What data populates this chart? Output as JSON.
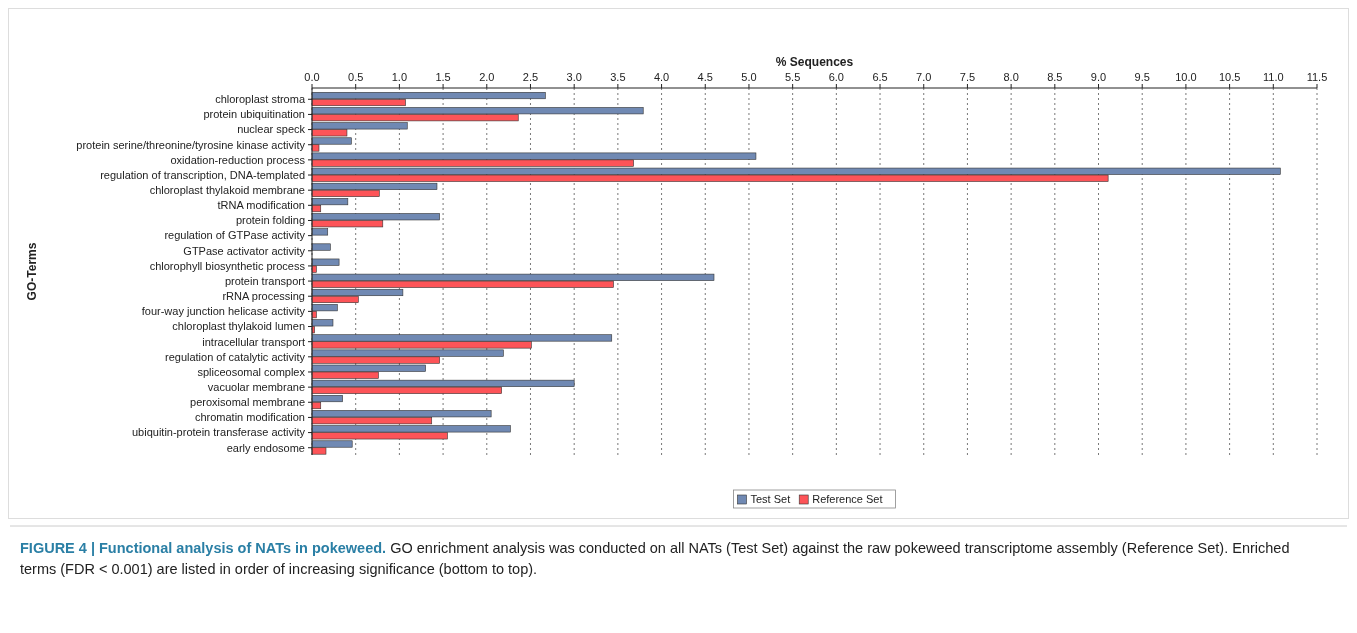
{
  "chart_data": {
    "type": "bar",
    "orientation": "horizontal",
    "xlabel": "% Sequences",
    "ylabel": "GO-Terms",
    "categories": [
      "chloroplast stroma",
      "protein ubiquitination",
      "nuclear speck",
      "protein serine/threonine/tyrosine kinase activity",
      "oxidation-reduction process",
      "regulation of transcription, DNA-templated",
      "chloroplast thylakoid membrane",
      "tRNA modification",
      "protein folding",
      "regulation of GTPase activity",
      "GTPase activator activity",
      "chlorophyll biosynthetic process",
      "protein transport",
      "rRNA processing",
      "four-way junction helicase activity",
      "chloroplast thylakoid lumen",
      "intracellular transport",
      "regulation of catalytic activity",
      "spliceosomal complex",
      "vacuolar membrane",
      "peroxisomal membrane",
      "chromatin modification",
      "ubiquitin-protein transferase activity",
      "early endosome"
    ],
    "series": [
      {
        "name": "Test Set",
        "color": "#7089b3",
        "values": [
          2.67,
          3.79,
          1.09,
          0.45,
          5.08,
          11.08,
          1.43,
          0.41,
          1.46,
          0.18,
          0.21,
          0.31,
          4.6,
          1.04,
          0.29,
          0.24,
          3.43,
          2.19,
          1.3,
          3.0,
          0.35,
          2.05,
          2.27,
          0.46
        ]
      },
      {
        "name": "Reference Set",
        "color": "#fd5458",
        "values": [
          1.07,
          2.36,
          0.4,
          0.08,
          3.68,
          9.11,
          0.77,
          0.1,
          0.81,
          null,
          null,
          0.05,
          3.45,
          0.53,
          0.05,
          0.03,
          2.51,
          1.46,
          0.76,
          2.17,
          0.1,
          1.37,
          1.55,
          0.16
        ]
      }
    ],
    "xlim": [
      0,
      11.5
    ],
    "xticks": [
      {
        "value": 0,
        "label": "0.0"
      },
      {
        "value": 0.5,
        "label": "0.5"
      },
      {
        "value": 1,
        "label": "1.0"
      },
      {
        "value": 1.5,
        "label": "1.5"
      },
      {
        "value": 2,
        "label": "2.0"
      },
      {
        "value": 2.5,
        "label": "2.5"
      },
      {
        "value": 3,
        "label": "3.0"
      },
      {
        "value": 3.5,
        "label": "3.5"
      },
      {
        "value": 4,
        "label": "4.0"
      },
      {
        "value": 4.5,
        "label": "4.5"
      },
      {
        "value": 5,
        "label": "5.0"
      },
      {
        "value": 5.5,
        "label": "5.5"
      },
      {
        "value": 6,
        "label": "6.0"
      },
      {
        "value": 6.5,
        "label": "6.5"
      },
      {
        "value": 7,
        "label": "7.0"
      },
      {
        "value": 7.5,
        "label": "7.5"
      },
      {
        "value": 8,
        "label": "8.0"
      },
      {
        "value": 8.5,
        "label": "8.5"
      },
      {
        "value": 9,
        "label": "9.0"
      },
      {
        "value": 9.5,
        "label": "9.5"
      },
      {
        "value": 10,
        "label": "10.0"
      },
      {
        "value": 10.5,
        "label": "10.5"
      },
      {
        "value": 11,
        "label": "11.0"
      },
      {
        "value": 11.5,
        "label": "11.5"
      }
    ],
    "grid": "x",
    "legend": "bottom",
    "annotations": [
      "FIGURE 4 | Functional analysis of NATs in pokeweed.",
      "GO enrichment analysis was conducted on all NATs (Test Set) against the raw pokeweed transcriptome assembly (Reference Set). Enriched terms (FDR < 0.001) are listed in order of increasing significance (bottom to top)."
    ]
  }
}
